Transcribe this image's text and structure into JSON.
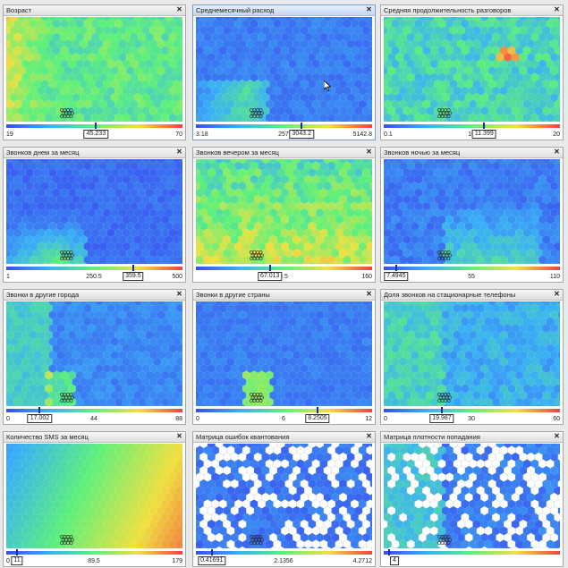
{
  "panels": [
    {
      "title": "Возраст",
      "min": "19",
      "max": "70",
      "mid": "",
      "value": "45.233",
      "pos": 0.51,
      "pattern": "age",
      "active": false
    },
    {
      "title": "Среднемесячный расход",
      "min": "3.18",
      "max": "5142.8",
      "mid": "257",
      "value": "3043.2",
      "pos": 0.6,
      "pattern": "spend",
      "active": true
    },
    {
      "title": "Средняя продолжительность разговоров",
      "min": "0.1",
      "max": "20",
      "mid": "10",
      "value": "11.399",
      "pos": 0.57,
      "pattern": "duration",
      "active": false
    },
    {
      "title": "Звонков днем за месяц",
      "min": "1",
      "max": "500",
      "mid": "250.5",
      "value": "359.5",
      "pos": 0.72,
      "pattern": "day",
      "active": false
    },
    {
      "title": "Звонков вечером за месяц",
      "min": "",
      "max": "160",
      "mid": "0.5",
      "value": "67.013",
      "pos": 0.42,
      "pattern": "evening",
      "active": false
    },
    {
      "title": "Звонков ночью за месяц",
      "min": "",
      "max": "110",
      "mid": "55",
      "value": "7.4945",
      "pos": 0.07,
      "pattern": "night",
      "active": false
    },
    {
      "title": "Звонки в другие города",
      "min": "0",
      "max": "88",
      "mid": "44",
      "value": "17.002",
      "pos": 0.19,
      "pattern": "cities",
      "active": false
    },
    {
      "title": "Звонки в другие страны",
      "min": "0",
      "max": "12",
      "mid": "6",
      "value": "8.2505",
      "pos": 0.69,
      "pattern": "countries",
      "active": false
    },
    {
      "title": "Доля звонков на стационарные телефоны",
      "min": "0",
      "max": "60",
      "mid": "30",
      "value": "19.987",
      "pos": 0.33,
      "pattern": "landline",
      "active": false
    },
    {
      "title": "Количество SMS за месяц",
      "min": "0",
      "max": "179",
      "mid": "89.5",
      "value": "11",
      "pos": 0.06,
      "pattern": "sms",
      "active": false
    },
    {
      "title": "Матрица ошибок квантования",
      "min": "",
      "max": "4.2712",
      "mid": "2.1356",
      "value": "0.41691",
      "pos": 0.09,
      "pattern": "qerr",
      "active": false
    },
    {
      "title": "Матрица плотности попадания",
      "min": "",
      "max": "",
      "mid": "",
      "value": "4",
      "pos": 0.03,
      "pattern": "density",
      "active": false
    }
  ],
  "close_glyph": "✕"
}
